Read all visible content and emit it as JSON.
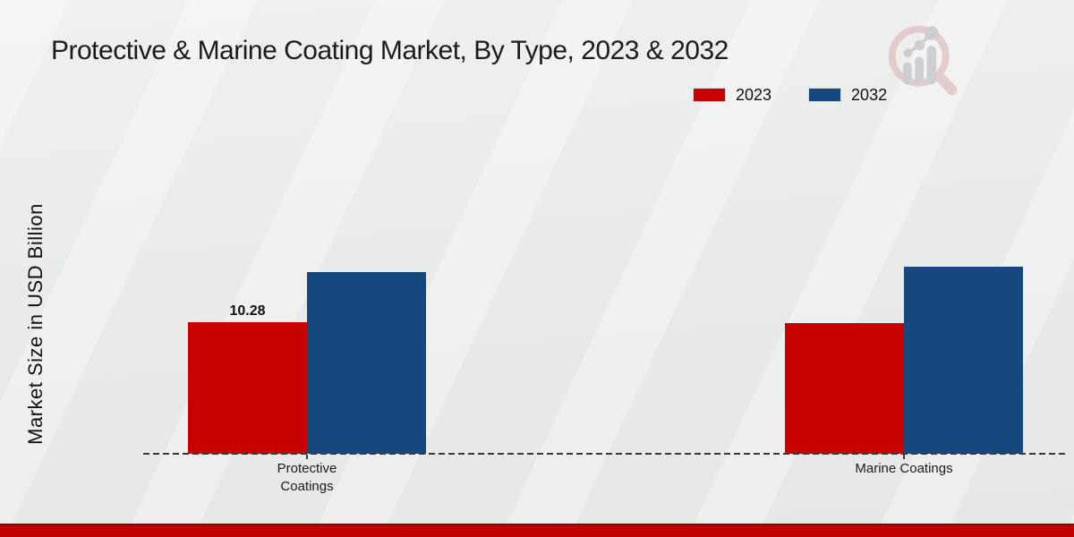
{
  "header": {
    "title": "Protective & Marine Coating Market, By Type, 2023 & 2032"
  },
  "logo": {
    "icon": "magnifier-bar-chart-logo",
    "ring_color": "#e2c6c6",
    "bars_color": "#c6c8cc"
  },
  "chart_data": {
    "type": "bar",
    "title": "Protective & Marine Coating Market, By Type, 2023 & 2032",
    "xlabel": "",
    "ylabel": "Market Size in USD Billion",
    "categories": [
      "Protective Coatings",
      "Marine Coatings"
    ],
    "series": [
      {
        "name": "2023",
        "color": "#c80101",
        "values": [
          10.28,
          10.2
        ]
      },
      {
        "name": "2032",
        "color": "#14487f",
        "values": [
          14.2,
          14.6
        ]
      }
    ],
    "data_labels": [
      {
        "series": "2023",
        "category": "Protective Coatings",
        "text": "10.28"
      }
    ],
    "legend_position": "top-right",
    "grid": false,
    "baseline_style": "dashed",
    "ylim": [
      0,
      16
    ]
  },
  "footer": {
    "accent_color": "#c10101"
  }
}
